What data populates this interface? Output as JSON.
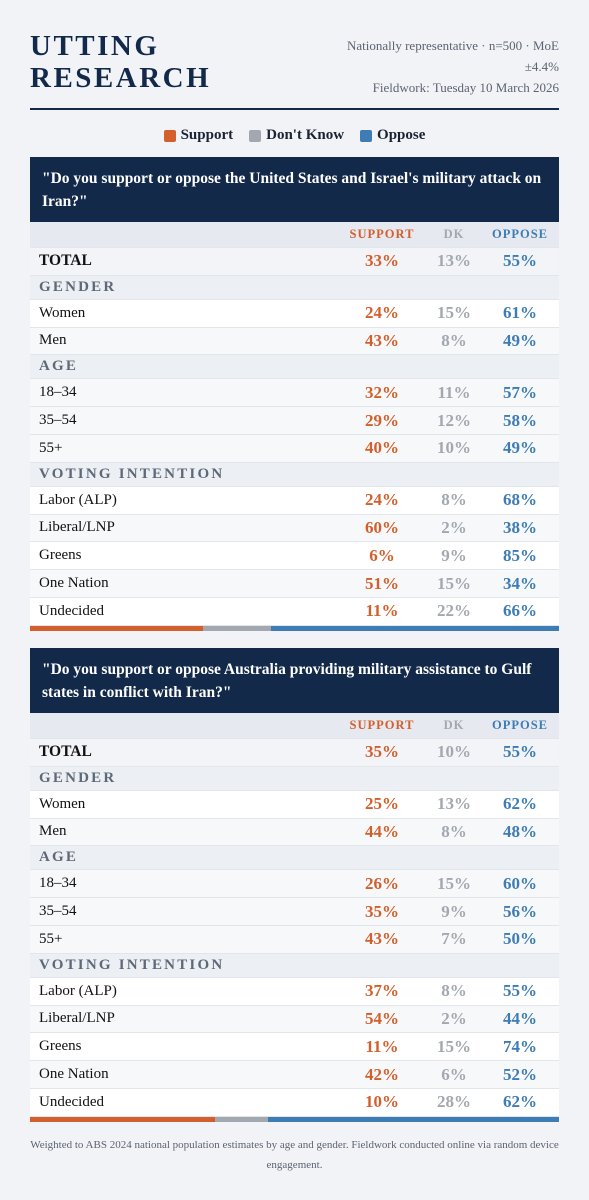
{
  "brand": {
    "line1": "UTTING",
    "line2": "RESEARCH"
  },
  "meta": {
    "line1": "Nationally representative · n=500 · MoE",
    "line2": "±4.4%",
    "line3": "Fieldwork: Tuesday 10 March 2026"
  },
  "colors": {
    "support": "#d35f2c",
    "dontknow": "#a3a8b0",
    "oppose": "#3d7cb5",
    "header": "#12294a"
  },
  "legend": {
    "support": "Support",
    "dontknow": "Don't Know",
    "oppose": "Oppose"
  },
  "columns": {
    "support": "SUPPORT",
    "dk": "DK",
    "oppose": "OPPOSE"
  },
  "sections": {
    "gender": "GENDER",
    "age": "AGE",
    "voting": "VOTING INTENTION"
  },
  "q1": {
    "question": "\"Do you support or oppose the United States and Israel's military attack on Iran?\"",
    "total": {
      "label": "TOTAL",
      "s": "33%",
      "d": "13%",
      "o": "55%"
    },
    "women": {
      "label": "Women",
      "s": "24%",
      "d": "15%",
      "o": "61%"
    },
    "men": {
      "label": "Men",
      "s": "43%",
      "d": "8%",
      "o": "49%"
    },
    "a1834": {
      "label": "18–34",
      "s": "32%",
      "d": "11%",
      "o": "57%"
    },
    "a3554": {
      "label": "35–54",
      "s": "29%",
      "d": "12%",
      "o": "58%"
    },
    "a55": {
      "label": "55+",
      "s": "40%",
      "d": "10%",
      "o": "49%"
    },
    "labor": {
      "label": "Labor (ALP)",
      "s": "24%",
      "d": "8%",
      "o": "68%"
    },
    "liberal": {
      "label": "Liberal/LNP",
      "s": "60%",
      "d": "2%",
      "o": "38%"
    },
    "greens": {
      "label": "Greens",
      "s": "6%",
      "d": "9%",
      "o": "85%"
    },
    "onenation": {
      "label": "One Nation",
      "s": "51%",
      "d": "15%",
      "o": "34%"
    },
    "undecided": {
      "label": "Undecided",
      "s": "11%",
      "d": "22%",
      "o": "66%"
    },
    "bar": {
      "support": 33,
      "dontknow": 13,
      "oppose": 55
    }
  },
  "q2": {
    "question": "\"Do you support or oppose Australia providing military assistance to Gulf states in conflict with Iran?\"",
    "total": {
      "label": "TOTAL",
      "s": "35%",
      "d": "10%",
      "o": "55%"
    },
    "women": {
      "label": "Women",
      "s": "25%",
      "d": "13%",
      "o": "62%"
    },
    "men": {
      "label": "Men",
      "s": "44%",
      "d": "8%",
      "o": "48%"
    },
    "a1834": {
      "label": "18–34",
      "s": "26%",
      "d": "15%",
      "o": "60%"
    },
    "a3554": {
      "label": "35–54",
      "s": "35%",
      "d": "9%",
      "o": "56%"
    },
    "a55": {
      "label": "55+",
      "s": "43%",
      "d": "7%",
      "o": "50%"
    },
    "labor": {
      "label": "Labor (ALP)",
      "s": "37%",
      "d": "8%",
      "o": "55%"
    },
    "liberal": {
      "label": "Liberal/LNP",
      "s": "54%",
      "d": "2%",
      "o": "44%"
    },
    "greens": {
      "label": "Greens",
      "s": "11%",
      "d": "15%",
      "o": "74%"
    },
    "onenation": {
      "label": "One Nation",
      "s": "42%",
      "d": "6%",
      "o": "52%"
    },
    "undecided": {
      "label": "Undecided",
      "s": "10%",
      "d": "28%",
      "o": "62%"
    },
    "bar": {
      "support": 35,
      "dontknow": 10,
      "oppose": 55
    }
  },
  "footer": "Weighted to ABS 2024 national population estimates by age and gender. Fieldwork conducted online via random device engagement."
}
